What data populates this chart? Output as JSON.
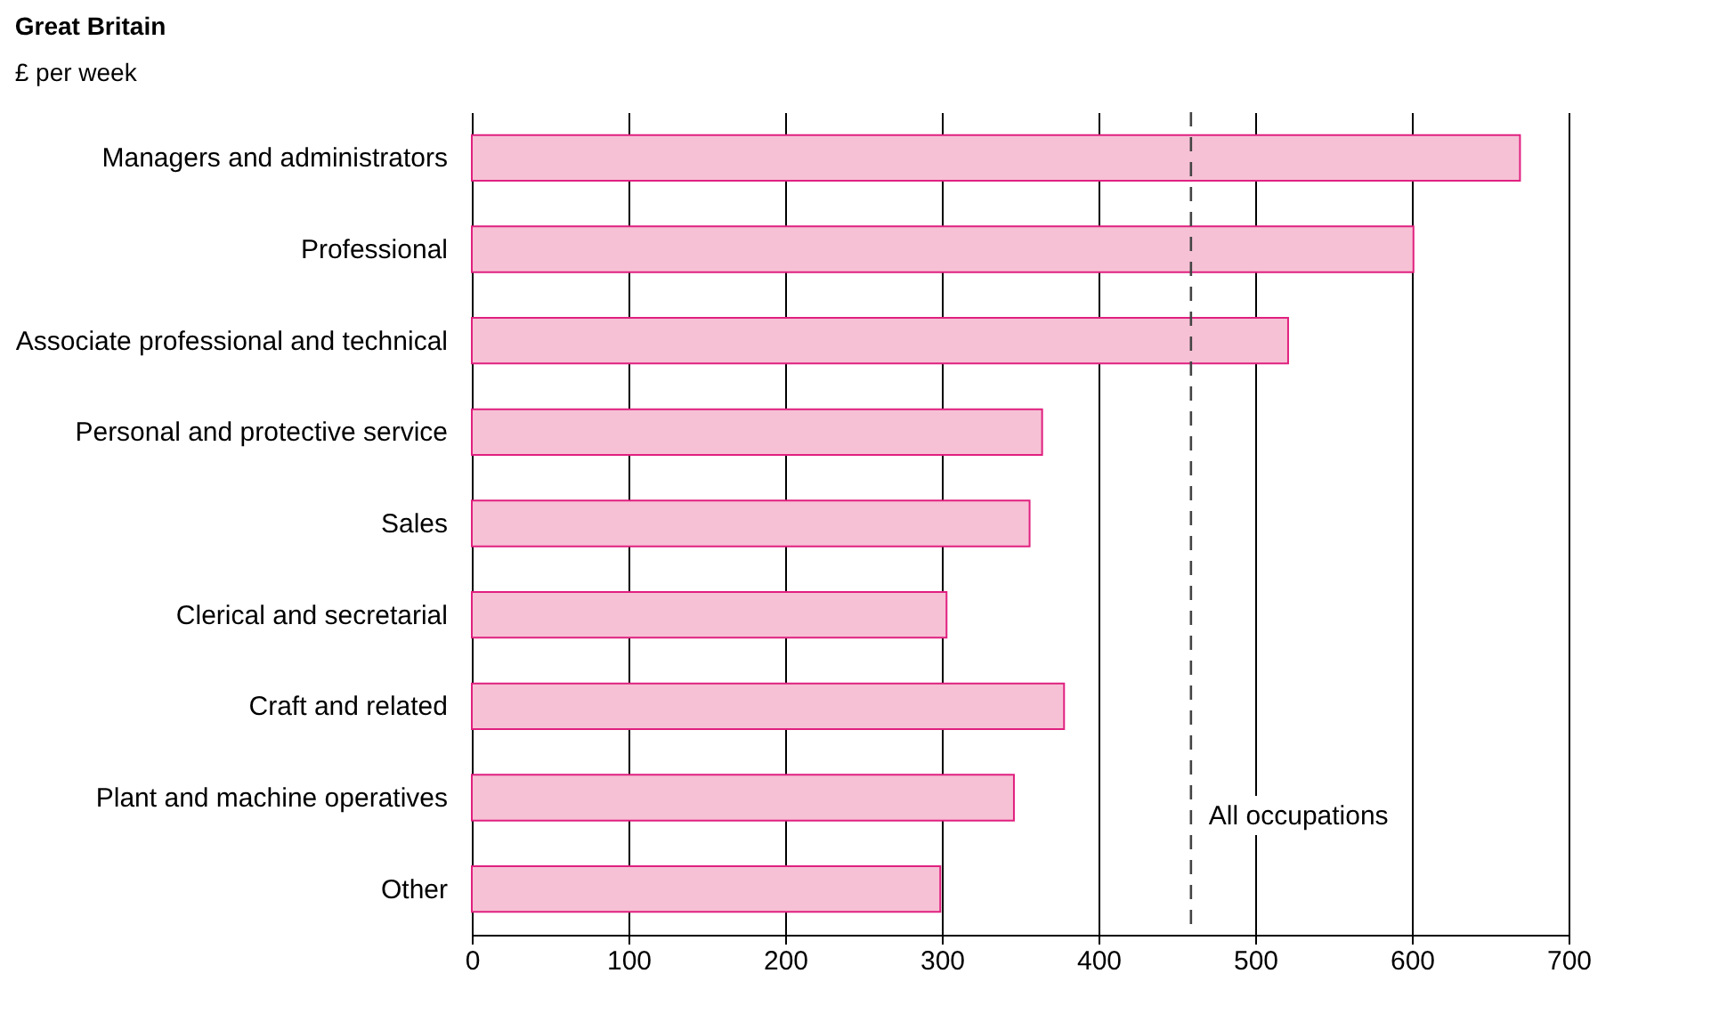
{
  "chart_data": {
    "type": "bar",
    "orientation": "horizontal",
    "title": "Great Britain",
    "subtitle": "£ per week",
    "categories": [
      "Managers and administrators",
      "Professional",
      "Associate professional and technical",
      "Personal and protective service",
      "Sales",
      "Clerical and secretarial",
      "Craft and related",
      "Plant and machine operatives",
      "Other"
    ],
    "values": [
      669,
      601,
      521,
      364,
      356,
      303,
      378,
      346,
      299
    ],
    "color": "#f7c1d5",
    "xlim": [
      0,
      700
    ],
    "xticks": [
      0,
      100,
      200,
      300,
      400,
      500,
      600,
      700
    ],
    "grid": "x",
    "ref_lines": [
      {
        "axis": "x",
        "value": 459,
        "label": "All occupations",
        "line_style": "dashed",
        "color": "#444444"
      }
    ]
  }
}
